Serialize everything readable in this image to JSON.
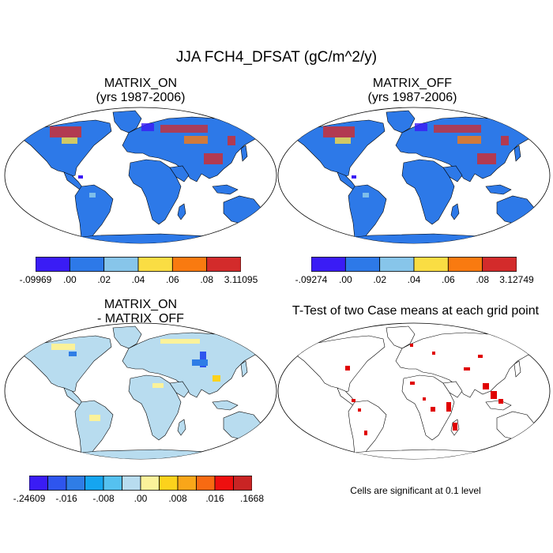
{
  "title": "JJA FCH4_DFSAT (gC/m^2/y)",
  "panels": [
    {
      "id": "on",
      "title_line1": "MATRIX_ON",
      "title_line2": "(yrs 1987-2006)"
    },
    {
      "id": "off",
      "title_line1": "MATRIX_OFF",
      "title_line2": "(yrs 1987-2006)"
    },
    {
      "id": "diff",
      "title_line1": "MATRIX_ON",
      "title_line2": "- MATRIX_OFF"
    },
    {
      "id": "ttest",
      "title_line1": "T-Test of two Case means at each grid point",
      "title_line2": ""
    }
  ],
  "colorbars": {
    "on": {
      "colors": [
        "#3a1cf5",
        "#2d79e8",
        "#87c5ea",
        "#fadd43",
        "#f97a10",
        "#d32b2b"
      ],
      "labels": [
        "-.09969",
        ".00",
        ".02",
        ".04",
        ".06",
        ".08",
        "3.11095"
      ]
    },
    "off": {
      "colors": [
        "#3a1cf5",
        "#2d79e8",
        "#87c5ea",
        "#fadd43",
        "#f97a10",
        "#d32b2b"
      ],
      "labels": [
        "-.09274",
        ".00",
        ".02",
        ".04",
        ".06",
        ".08",
        "3.12749"
      ]
    },
    "diff": {
      "colors": [
        "#3a1cf5",
        "#2e55ee",
        "#2f7de6",
        "#15a5f0",
        "#55c1f0",
        "#b8dcef",
        "#fbf29a",
        "#fcd21c",
        "#f9a619",
        "#f86a12",
        "#ee0f0f",
        "#c92424"
      ],
      "labels": [
        "-.24609",
        "-.016",
        "-.008",
        ".00",
        ".008",
        ".016",
        ".1668"
      ]
    }
  },
  "note": "Cells are significant at 0.1 level",
  "colors": {
    "on_fill": "#2d79e8",
    "diff_fill": "#b8dcef",
    "ttest_mark": "#e00000"
  }
}
